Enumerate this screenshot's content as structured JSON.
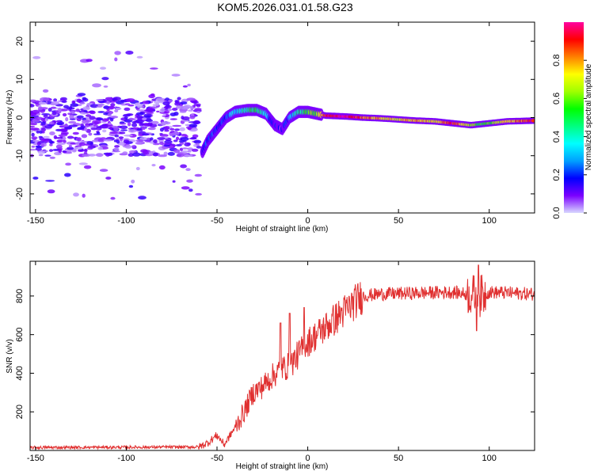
{
  "title": "KOM5.2026.031.01.58.G23",
  "colors": {
    "snr_line": "#e03030",
    "axis": "#000000",
    "colorbar_stops": [
      "#d8d8ff",
      "#7b00ff",
      "#0000ff",
      "#00a0ff",
      "#00ffff",
      "#00ff80",
      "#00ff00",
      "#a0ff00",
      "#ffff00",
      "#ff8000",
      "#ff0000",
      "#ff00a0"
    ]
  },
  "chart_data": [
    {
      "id": "spectrogram",
      "type": "heatmap",
      "title": "KOM5.2026.031.01.58.G23",
      "xlabel": "Height of straight line (km)",
      "ylabel": "Frequency (Hz)",
      "xlim": [
        -153,
        125
      ],
      "ylim": [
        -25,
        25
      ],
      "xticks": [
        -150,
        -100,
        -50,
        0,
        50,
        100
      ],
      "yticks": [
        -20,
        -10,
        0,
        10,
        20
      ],
      "colorbar": {
        "label": "Normalized spectral amplitude",
        "range": [
          0,
          1
        ],
        "ticks": [
          "0.0",
          "0.2",
          "0.4",
          "0.6",
          "0.8"
        ]
      },
      "ridge": [
        {
          "x": -58,
          "y": -9,
          "amp": 0.15
        },
        {
          "x": -55,
          "y": -6,
          "amp": 0.2
        },
        {
          "x": -50,
          "y": -3,
          "amp": 0.2
        },
        {
          "x": -45,
          "y": 0,
          "amp": 0.25
        },
        {
          "x": -40,
          "y": 1.5,
          "amp": 0.35
        },
        {
          "x": -33,
          "y": 2,
          "amp": 0.45
        },
        {
          "x": -28,
          "y": 2,
          "amp": 0.5
        },
        {
          "x": -23,
          "y": 1,
          "amp": 0.35
        },
        {
          "x": -18,
          "y": -2,
          "amp": 0.15
        },
        {
          "x": -14,
          "y": -3,
          "amp": 0.1
        },
        {
          "x": -10,
          "y": 0,
          "amp": 0.25
        },
        {
          "x": -5,
          "y": 1.5,
          "amp": 0.45
        },
        {
          "x": 0,
          "y": 1.5,
          "amp": 0.55
        },
        {
          "x": 5,
          "y": 1,
          "amp": 0.6
        },
        {
          "x": 10,
          "y": 0.5,
          "amp": 0.9
        },
        {
          "x": 20,
          "y": 0.3,
          "amp": 1.0
        },
        {
          "x": 30,
          "y": 0,
          "amp": 0.85
        },
        {
          "x": 40,
          "y": -0.2,
          "amp": 0.75
        },
        {
          "x": 50,
          "y": -0.5,
          "amp": 0.7
        },
        {
          "x": 60,
          "y": -0.8,
          "amp": 0.8
        },
        {
          "x": 70,
          "y": -1,
          "amp": 0.7
        },
        {
          "x": 80,
          "y": -1.5,
          "amp": 0.9
        },
        {
          "x": 90,
          "y": -2,
          "amp": 0.6
        },
        {
          "x": 100,
          "y": -1.5,
          "amp": 0.55
        },
        {
          "x": 110,
          "y": -1,
          "amp": 0.75
        },
        {
          "x": 125,
          "y": -0.8,
          "amp": 0.9
        }
      ],
      "noise_region": {
        "xmin": -153,
        "xmax": -60,
        "ymin": -10,
        "ymax": 5,
        "amp_range": [
          0.02,
          0.15
        ]
      }
    },
    {
      "id": "snr",
      "type": "line",
      "xlabel": "Height of straight line (km)",
      "ylabel": "SNR (v/v)",
      "xlim": [
        -153,
        125
      ],
      "ylim": [
        0,
        980
      ],
      "xticks": [
        -150,
        -100,
        -50,
        0,
        50,
        100
      ],
      "yticks": [
        200,
        400,
        600,
        800
      ],
      "envelope": [
        {
          "x": -153,
          "y": 15
        },
        {
          "x": -60,
          "y": 18
        },
        {
          "x": -55,
          "y": 40
        },
        {
          "x": -50,
          "y": 80
        },
        {
          "x": -46,
          "y": 30
        },
        {
          "x": -40,
          "y": 120
        },
        {
          "x": -35,
          "y": 200
        },
        {
          "x": -30,
          "y": 300
        },
        {
          "x": -25,
          "y": 330
        },
        {
          "x": -20,
          "y": 380
        },
        {
          "x": -15,
          "y": 420
        },
        {
          "x": -10,
          "y": 440
        },
        {
          "x": -5,
          "y": 500
        },
        {
          "x": 0,
          "y": 560
        },
        {
          "x": 10,
          "y": 640
        },
        {
          "x": 20,
          "y": 720
        },
        {
          "x": 30,
          "y": 800
        },
        {
          "x": 40,
          "y": 810
        },
        {
          "x": 60,
          "y": 815
        },
        {
          "x": 80,
          "y": 820
        },
        {
          "x": 95,
          "y": 800
        },
        {
          "x": 100,
          "y": 820
        },
        {
          "x": 125,
          "y": 810
        }
      ],
      "spikes": [
        {
          "x": -15,
          "y": 660
        },
        {
          "x": -10,
          "y": 710
        },
        {
          "x": -2,
          "y": 740
        },
        {
          "x": 94,
          "y": 960
        },
        {
          "x": 93,
          "y": 620
        }
      ]
    }
  ]
}
